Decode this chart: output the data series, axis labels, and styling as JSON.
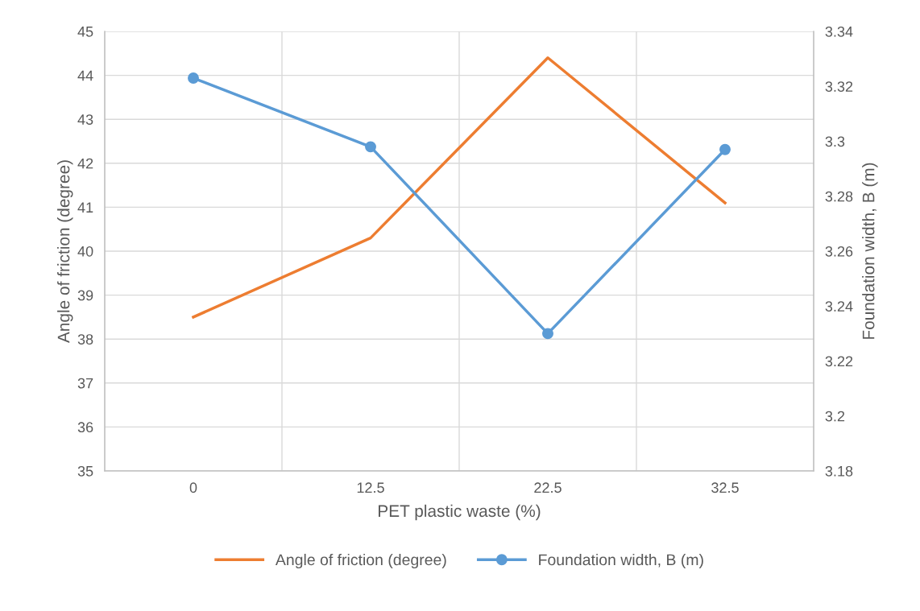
{
  "chart_data": {
    "type": "line",
    "xlabel": "PET plastic waste (%)",
    "ylabel": "Angle of friction (degree)",
    "y2label": "Foundation width, B (m)",
    "categories": [
      "0",
      "12.5",
      "22.5",
      "32.5"
    ],
    "series": [
      {
        "name": "Angle of friction (degree)",
        "color": "#ed7d31",
        "values": [
          38.5,
          40.3,
          44.4,
          41.1
        ],
        "marker": "none"
      },
      {
        "name": "Foundation width, B (m)",
        "color": "#5b9bd5",
        "values": [
          3.323,
          3.298,
          3.23,
          3.297
        ],
        "axis": "y2",
        "marker": "circle"
      }
    ],
    "ylim": [
      35,
      45
    ],
    "yticks": [
      35,
      36,
      37,
      38,
      39,
      40,
      41,
      42,
      43,
      44,
      45
    ],
    "y2lim": [
      3.18,
      3.34
    ],
    "y2ticks": [
      3.18,
      3.2,
      3.22,
      3.24,
      3.26,
      3.28,
      3.3,
      3.32,
      3.34
    ],
    "grid": true,
    "legend": "bottom",
    "line_style": "solid"
  }
}
